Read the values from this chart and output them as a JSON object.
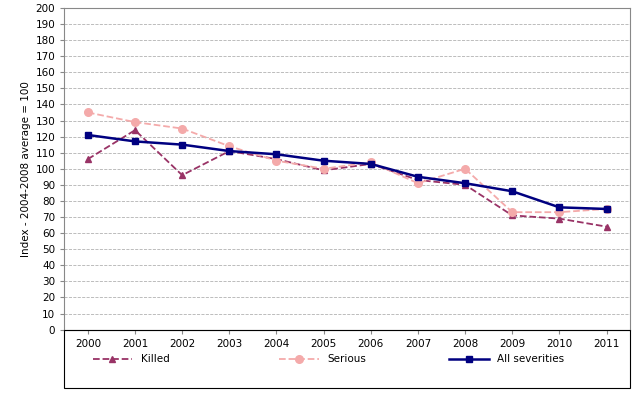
{
  "years": [
    2000,
    2001,
    2002,
    2003,
    2004,
    2005,
    2006,
    2007,
    2008,
    2009,
    2010,
    2011
  ],
  "killed": [
    106,
    124,
    96,
    111,
    106,
    99,
    103,
    93,
    90,
    71,
    69,
    64
  ],
  "serious": [
    135,
    129,
    125,
    114,
    105,
    100,
    104,
    91,
    100,
    73,
    73,
    75
  ],
  "all_severities": [
    121,
    117,
    115,
    111,
    109,
    105,
    103,
    95,
    91,
    86,
    76,
    75
  ],
  "ylabel": "Index - 2004-2008 average = 100",
  "ylim": [
    0,
    200
  ],
  "yticks": [
    0,
    10,
    20,
    30,
    40,
    50,
    60,
    70,
    80,
    90,
    100,
    110,
    120,
    130,
    140,
    150,
    160,
    170,
    180,
    190,
    200
  ],
  "killed_color": "#993366",
  "serious_color": "#F4AAAA",
  "all_sev_color": "#000080",
  "grid_color": "#AAAAAA",
  "bg_color": "#FFFFFF",
  "legend_labels": [
    "Killed",
    "Serious",
    "All severities"
  ]
}
